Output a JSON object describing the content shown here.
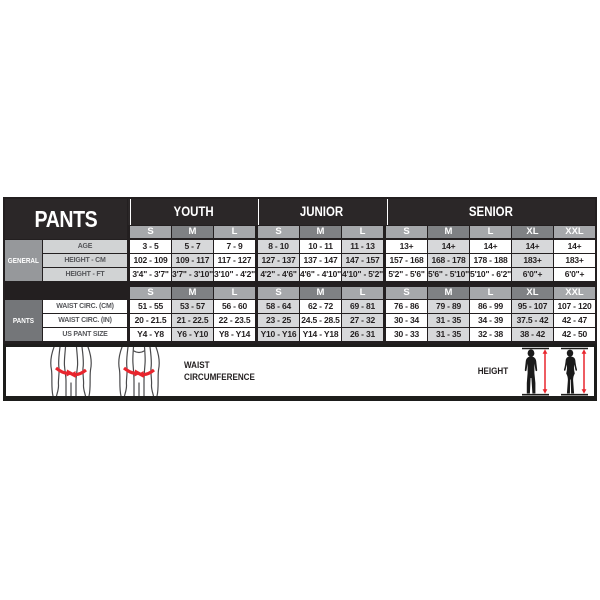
{
  "chart_data": {
    "type": "table",
    "title": "PANTS",
    "column_groups": [
      {
        "label": "YOUTH",
        "sizes": [
          "S",
          "M",
          "L"
        ]
      },
      {
        "label": "JUNIOR",
        "sizes": [
          "S",
          "M",
          "L"
        ]
      },
      {
        "label": "SENIOR",
        "sizes": [
          "S",
          "M",
          "L",
          "XL",
          "XXL"
        ]
      }
    ],
    "row_sections": [
      {
        "label": "GENERAL",
        "rows": [
          {
            "label": "AGE",
            "values": [
              "3 - 5",
              "5 - 7",
              "7 - 9",
              "8 - 10",
              "10 - 11",
              "11 - 13",
              "13+",
              "14+",
              "14+",
              "14+",
              "14+"
            ]
          },
          {
            "label": "HEIGHT - CM",
            "values": [
              "102 - 109",
              "109 - 117",
              "117 - 127",
              "127 - 137",
              "137 - 147",
              "147 - 157",
              "157 - 168",
              "168 - 178",
              "178 - 188",
              "183+",
              "183+"
            ]
          },
          {
            "label": "HEIGHT - FT",
            "values": [
              "3'4\" - 3'7\"",
              "3'7\" - 3'10\"",
              "3'10\" - 4'2\"",
              "4'2\" - 4'6\"",
              "4'6\" - 4'10\"",
              "4'10\" - 5'2\"",
              "5'2\" - 5'6\"",
              "5'6\" - 5'10\"",
              "5'10\" - 6'2\"",
              "6'0\"+",
              "6'0\"+"
            ]
          }
        ]
      },
      {
        "label": "PANTS",
        "rows": [
          {
            "label": "WAIST CIRC. (CM)",
            "values": [
              "51 - 55",
              "53 - 57",
              "56 - 60",
              "58 - 64",
              "62 - 72",
              "69 - 81",
              "76 - 86",
              "79 - 89",
              "86 - 99",
              "95 - 107",
              "107 - 120"
            ]
          },
          {
            "label": "WAIST CIRC. (IN)",
            "values": [
              "20 - 21.5",
              "21 - 22.5",
              "22 - 23.5",
              "23 - 25",
              "24.5 - 28.5",
              "27 - 32",
              "30 - 34",
              "31 - 35",
              "34 - 39",
              "37.5 - 42",
              "42 - 47"
            ]
          },
          {
            "label": "US PANT SIZE",
            "values": [
              "Y4 - Y8",
              "Y6 - Y10",
              "Y8 - Y14",
              "Y10 - Y16",
              "Y14 - Y18",
              "26 - 31",
              "30 - 33",
              "31 - 35",
              "32 - 38",
              "38 - 42",
              "42 - 50"
            ]
          }
        ]
      }
    ],
    "legend": {
      "waist_label": "WAIST CIRCUMFERENCE",
      "height_label": "HEIGHT"
    },
    "colors": {
      "header_bg": "#2b2728",
      "size_header_light": "#a6a8ab",
      "size_header_dark": "#7f8184",
      "cell_white": "#ffffff",
      "cell_gray": "#d7d8da",
      "label_gray": "#d1d3d4",
      "general_group_bg": "#96989b",
      "pants_group_bg": "#747679",
      "arrow_red": "#e8252d",
      "line_black": "#231f20"
    }
  }
}
